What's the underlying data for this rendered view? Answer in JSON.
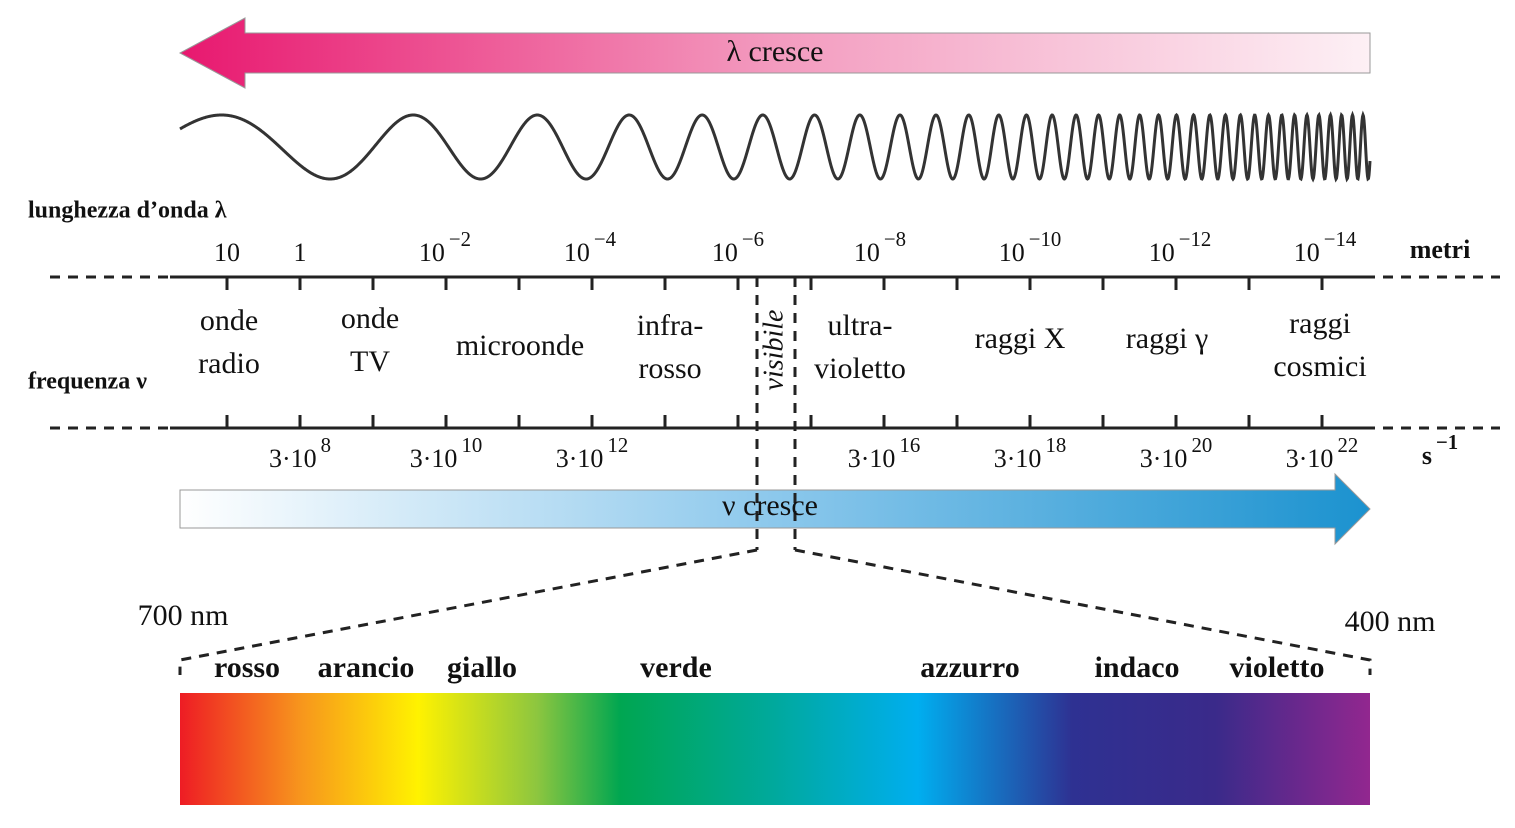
{
  "top_arrow": {
    "label": "λ cresce"
  },
  "wavelength_axis": {
    "title": "lunghezza d’onda λ",
    "unit": "metri",
    "labels": [
      {
        "base": "10"
      },
      {
        "base": "1"
      },
      {
        "base": "10",
        "exp": "−2"
      },
      {
        "base": "10",
        "exp": "−4"
      },
      {
        "base": "10",
        "exp": "−6"
      },
      {
        "base": "10",
        "exp": "−8"
      },
      {
        "base": "10",
        "exp": "−10"
      },
      {
        "base": "10",
        "exp": "−12"
      },
      {
        "base": "10",
        "exp": "−14"
      }
    ]
  },
  "regions": [
    {
      "lines": [
        "onde",
        "radio"
      ]
    },
    {
      "lines": [
        "onde",
        "TV"
      ]
    },
    {
      "lines": [
        "microonde"
      ]
    },
    {
      "lines": [
        "infra-",
        "rosso"
      ]
    },
    {
      "lines": [
        "visibile"
      ]
    },
    {
      "lines": [
        "ultra-",
        "violetto"
      ]
    },
    {
      "lines": [
        "raggi X"
      ]
    },
    {
      "lines": [
        "raggi γ"
      ]
    },
    {
      "lines": [
        "raggi",
        "cosmici"
      ]
    }
  ],
  "frequency_axis": {
    "title": "frequenza ν",
    "unit": {
      "base": "s",
      "exp": "−1"
    },
    "labels": [
      {
        "base": "3·10",
        "exp": "8"
      },
      {
        "base": "3·10",
        "exp": "10"
      },
      {
        "base": "3·10",
        "exp": "12"
      },
      {
        "base": "3·10",
        "exp": "16"
      },
      {
        "base": "3·10",
        "exp": "18"
      },
      {
        "base": "3·10",
        "exp": "20"
      },
      {
        "base": "3·10",
        "exp": "22"
      }
    ]
  },
  "bottom_arrow": {
    "label": "ν cresce"
  },
  "visible_spectrum": {
    "left_label": "700 nm",
    "right_label": "400 nm",
    "colors": [
      "rosso",
      "arancio",
      "giallo",
      "verde",
      "azzurro",
      "indaco",
      "violetto"
    ]
  }
}
